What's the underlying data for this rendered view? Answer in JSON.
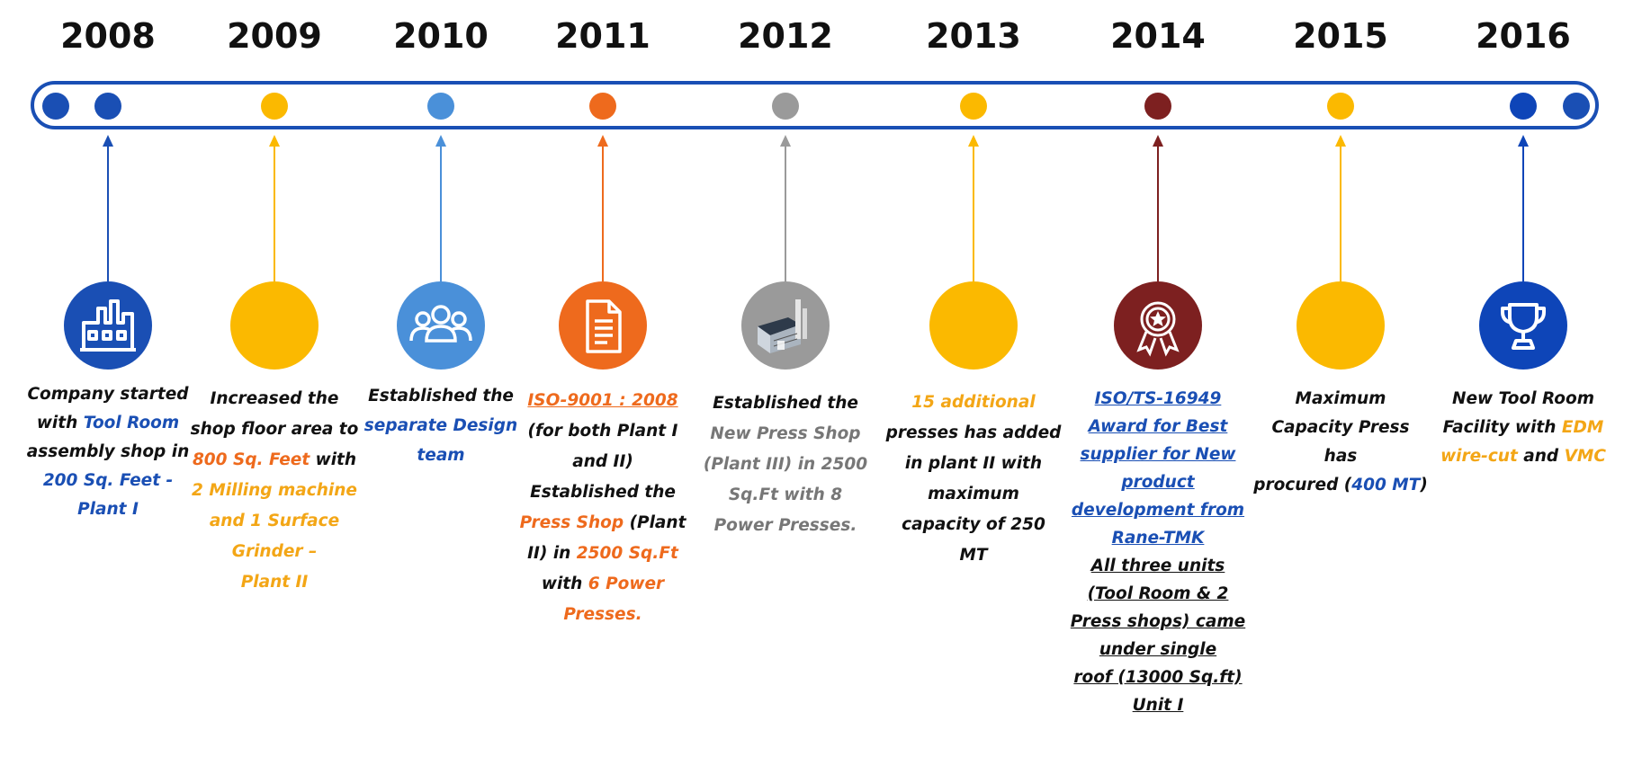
{
  "colors": {
    "track": "#1a4fb4",
    "blue": "#1a4fb4",
    "light_blue": "#4a90d9",
    "orange": "#ee6a1d",
    "yellow": "#fbb900",
    "gray": "#9a9a9a",
    "maroon": "#7d2020",
    "dark_navy": "#0e45b8"
  },
  "milestones": [
    {
      "year": "2008",
      "color": "#1a4fb4",
      "icon": "factory-icon",
      "lines": [
        [
          {
            "t": "Company started",
            "c": "black"
          }
        ],
        [
          {
            "t": "with ",
            "c": "black"
          },
          {
            "t": "Tool Room",
            "c": "blue"
          }
        ],
        [
          {
            "t": "assembly shop in",
            "c": "black"
          }
        ],
        [
          {
            "t": "200 Sq. Feet -",
            "c": "blue"
          }
        ],
        [
          {
            "t": "Plant I",
            "c": "blue"
          }
        ]
      ]
    },
    {
      "year": "2009",
      "color": "#fbb900",
      "icon": "none",
      "lines": [
        [
          {
            "t": "Increased the",
            "c": "black"
          }
        ],
        [
          {
            "t": "shop floor area to",
            "c": "black"
          }
        ],
        [
          {
            "t": "800 Sq. Feet",
            "c": "orange"
          },
          {
            "t": " with",
            "c": "black"
          }
        ],
        [
          {
            "t": "2 Milling machine",
            "c": "yellow"
          }
        ],
        [
          {
            "t": "and 1 Surface",
            "c": "yellow"
          }
        ],
        [
          {
            "t": "Grinder –",
            "c": "yellow"
          }
        ],
        [
          {
            "t": "Plant II",
            "c": "yellow"
          }
        ]
      ]
    },
    {
      "year": "2010",
      "color": "#4a90d9",
      "icon": "team-icon",
      "lines": [
        [
          {
            "t": "Established the",
            "c": "black"
          }
        ],
        [
          {
            "t": "separate Design",
            "c": "blue"
          }
        ],
        [
          {
            "t": "team",
            "c": "blue"
          }
        ]
      ]
    },
    {
      "year": "2011",
      "color": "#ee6a1d",
      "icon": "document-icon",
      "lines": [
        [
          {
            "t": "ISO-9001 : 2008",
            "c": "orange",
            "u": true
          }
        ],
        [
          {
            "t": "(for both Plant I",
            "c": "black"
          }
        ],
        [
          {
            "t": "and II)",
            "c": "black"
          }
        ],
        [
          {
            "t": "Established the",
            "c": "black"
          }
        ],
        [
          {
            "t": "Press Shop",
            "c": "orange"
          },
          {
            "t": " (Plant",
            "c": "black"
          }
        ],
        [
          {
            "t": "II) in ",
            "c": "black"
          },
          {
            "t": "2500 Sq.Ft",
            "c": "orange"
          }
        ],
        [
          {
            "t": "with ",
            "c": "black"
          },
          {
            "t": "6 Power",
            "c": "orange"
          }
        ],
        [
          {
            "t": "Presses.",
            "c": "orange"
          }
        ]
      ]
    },
    {
      "year": "2012",
      "color": "#9a9a9a",
      "icon": "press-shop-icon",
      "lines": [
        [
          {
            "t": "Established the",
            "c": "black"
          }
        ],
        [
          {
            "t": "New Press Shop",
            "c": "gray"
          }
        ],
        [
          {
            "t": "(Plant III) in 2500",
            "c": "gray"
          }
        ],
        [
          {
            "t": "Sq.Ft with 8",
            "c": "gray"
          }
        ],
        [
          {
            "t": "Power Presses.",
            "c": "gray"
          }
        ]
      ]
    },
    {
      "year": "2013",
      "color": "#fbb900",
      "icon": "none",
      "lines": [
        [
          {
            "t": "15 additional",
            "c": "yellow"
          }
        ],
        [
          {
            "t": "presses has added",
            "c": "black"
          }
        ],
        [
          {
            "t": "in plant II with",
            "c": "black"
          }
        ],
        [
          {
            "t": "maximum",
            "c": "black"
          }
        ],
        [
          {
            "t": "capacity of 250",
            "c": "black"
          }
        ],
        [
          {
            "t": "MT",
            "c": "black"
          }
        ]
      ]
    },
    {
      "year": "2014",
      "color": "#7d2020",
      "icon": "award-ribbon-icon",
      "lines": [
        [
          {
            "t": "ISO/TS-16949",
            "c": "blue",
            "u": true
          }
        ],
        [
          {
            "t": "Award for Best",
            "c": "blue",
            "u": true
          }
        ],
        [
          {
            "t": "supplier for New",
            "c": "blue",
            "u": true
          }
        ],
        [
          {
            "t": "product",
            "c": "blue",
            "u": true
          }
        ],
        [
          {
            "t": "development from",
            "c": "blue",
            "u": true
          }
        ],
        [
          {
            "t": "Rane-TMK",
            "c": "blue",
            "u": true
          }
        ],
        [
          {
            "t": "All three units",
            "c": "black",
            "u": true
          }
        ],
        [
          {
            "t": "(Tool Room & 2",
            "c": "black",
            "u": true
          }
        ],
        [
          {
            "t": "Press shops) came",
            "c": "black",
            "u": true
          }
        ],
        [
          {
            "t": "under single",
            "c": "black",
            "u": true
          }
        ],
        [
          {
            "t": "roof (13000 Sq.ft)",
            "c": "black",
            "u": true
          }
        ],
        [
          {
            "t": "Unit I",
            "c": "black",
            "u": true
          }
        ]
      ]
    },
    {
      "year": "2015",
      "color": "#fbb900",
      "icon": "none",
      "lines": [
        [
          {
            "t": "Maximum",
            "c": "black"
          }
        ],
        [
          {
            "t": "Capacity Press has",
            "c": "black"
          }
        ],
        [
          {
            "t": "procured (",
            "c": "black"
          },
          {
            "t": "400 MT",
            "c": "blue"
          },
          {
            "t": ")",
            "c": "black"
          }
        ]
      ]
    },
    {
      "year": "2016",
      "color": "#0e45b8",
      "icon": "trophy-icon",
      "lines": [
        [
          {
            "t": "New Tool Room",
            "c": "black"
          }
        ],
        [
          {
            "t": "Facility with ",
            "c": "black"
          },
          {
            "t": "EDM",
            "c": "yellow"
          }
        ],
        [
          {
            "t": "wire-cut",
            "c": "yellow"
          },
          {
            "t": " and ",
            "c": "black"
          },
          {
            "t": "VMC",
            "c": "yellow"
          }
        ]
      ]
    }
  ]
}
